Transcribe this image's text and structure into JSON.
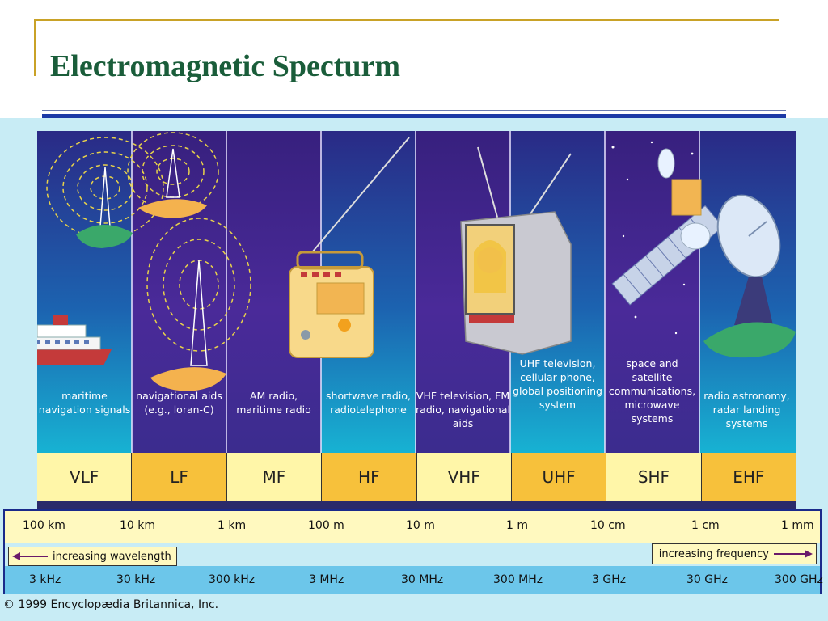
{
  "title": "Electromagnetic Specturm",
  "applications": [
    "maritime navigation signals",
    "navigational aids (e.g., loran-C)",
    "AM radio, maritime radio",
    "shortwave radio, radiotelephone",
    "VHF television, FM radio, navigational aids",
    "UHF television, cellular phone, global positioning system",
    "space and satellite communications, microwave systems",
    "radio astronomy, radar landing systems"
  ],
  "bands": [
    "VLF",
    "LF",
    "MF",
    "HF",
    "VHF",
    "UHF",
    "SHF",
    "EHF"
  ],
  "wavelengths": [
    "100 km",
    "10 km",
    "1 km",
    "100 m",
    "10 m",
    "1 m",
    "10 cm",
    "1 cm",
    "1 mm"
  ],
  "frequencies": [
    "3 kHz",
    "30 kHz",
    "300 kHz",
    "3 MHz",
    "30 MHz",
    "300 MHz",
    "3 GHz",
    "30 GHz",
    "300 GHz"
  ],
  "wavelength_arrow_label": "increasing wavelength",
  "frequency_arrow_label": "increasing frequency",
  "copyright": "© 1999 Encyclopædia Britannica, Inc.",
  "colors": {
    "title": "#1a5d3a",
    "band_light": "#fff6a8",
    "band_dark": "#f7c13b",
    "panel_top": "#2e2b86",
    "panel_bottom": "#1aa6c9",
    "accent_rule": "#1c3aa6"
  }
}
